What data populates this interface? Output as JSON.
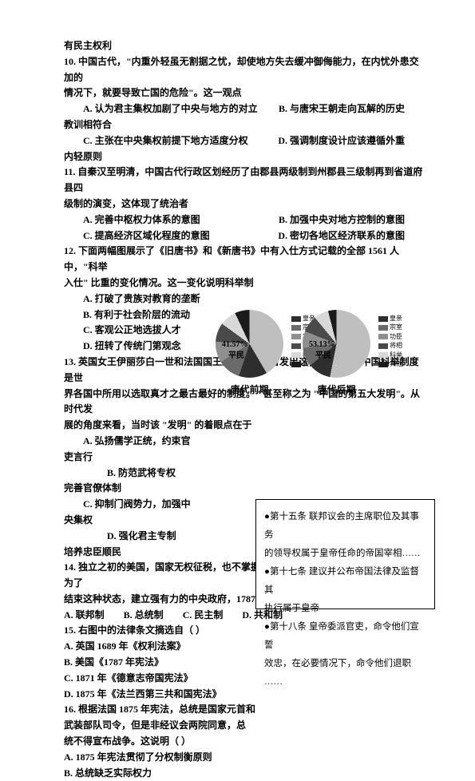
{
  "l1": "有民主权利",
  "q10_stem_a": "10. 中国古代，\"内重外轻虽无割据之忧，却使地方失去缓冲御侮能力，在内忧外患交加的",
  "q10_stem_b": "情况下，就要导致亡国的危险\"。这一观点",
  "q10_A": "A. 认为君主集权加剧了中央与地方的对立",
  "q10_B": "B. 与唐宋王朝走向瓦解的历史",
  "q10_Bx": "教训相符合",
  "q10_C": "C. 主张在中央集权前提下地方适度分权",
  "q10_D": "D. 强调制度设计应该遵循外重",
  "q10_Dx": "内轻原则",
  "q11_stem_a": "11. 自秦汉至明清，中国古代行政区划经历了由郡县两级制到州郡县三级制再到省道府县四",
  "q11_stem_b": "级制的演变，这体现了统治者",
  "q11_A": "A. 完善中枢权力体系的意图",
  "q11_B": "B. 加强中央对地方控制的意图",
  "q11_C": "C. 提高经济区域化程度的意图",
  "q11_D": "D. 密切各地区经济联系的意图",
  "q12_stem_a": "12. 下面两幅图展示了《旧唐书》和《新唐书》中有入仕方式记载的全部 1561 人中，\"科举",
  "q12_stem_b": "入仕\" 比重的变化情况。这一变化说明科举制",
  "q12_A": "A. 打破了贵族对教育的垄断",
  "q12_B": "B. 有利于社会阶层的流动",
  "q12_C": "C. 客观公正地选拔人才",
  "q12_D": "D. 扭转了传统门第观念",
  "q13_stem_a": "13. 英国女王伊丽莎白一世和法国国王路易十四都曾发出这样的感叹：\"中国科举制度是世",
  "q13_stem_b": "界各国中所用以选取真才之最古最好的制度。\" 甚至称之为 \"中国的第五大发明\"。从时代发",
  "q13_stem_c": "展的角度来看，当时该 \"发明\" 的着眼点在于",
  "q13_A_a": "A. 弘扬儒学正统，约束官",
  "q13_A_b": "吏言行",
  "q13_B_a": "B. 防范武将专权",
  "q13_B_b": "完善官僚体制",
  "q13_C_a": "C. 抑制门阀势力，加强中",
  "q13_C_b": "央集权",
  "q13_D_a": "D. 强化君主专制",
  "q13_D_b": "培养忠臣顺民",
  "q14_stem_a": "14. 独立之初的美国，国家无权征税，也不掌握军队，各州权力很大，社会动荡加剧。为了",
  "q14_stem_b": "结束这种状态，建立强有力的中央政府，1787 年宪法确立了（   ）",
  "q14_A": "A. 联邦制",
  "q14_B": "B. 总统制",
  "q14_C": "C. 民主制",
  "q14_D": "D. 共和制",
  "q15_stem": "15. 右图中的法律条文摘选自（   ）",
  "q15_A": "A. 英国 1689 年《权利法案》",
  "q15_B": "B. 美国《1787 年宪法》",
  "q15_C": "C. 1871 年《德意志帝国宪法》",
  "q15_D": "D. 1875 年《法兰西第三共和国宪法》",
  "q16_stem_a": "16. 根据法国 1875 年宪法，总统是国家元首和",
  "q16_stem_b": "武装部队司令，但是非经议会两院同意，总",
  "q16_stem_c": "统不得宣布战争。这说明（   ）",
  "q16_A": "A. 1875 年宪法贯彻了分权制衡原则",
  "q16_B": "B. 总统缺乏实际权力",
  "box_l1": "●第十五条    联邦议会的主席职位及其事务",
  "box_l2": "的领导权属于皇帝任命的帝国宰相……",
  "box_l3": "●第十七条    建议并公布帝国法律及监督其",
  "box_l4": "执行属于皇帝",
  "box_l5": "●第十八条    皇帝委派官吏，命令他们宣誓",
  "box_l6": "效忠，在必要情况下，命令他们退职",
  "box_l7": "……",
  "chart1": {
    "percent_text": "41.57%",
    "sub_label": "平民",
    "caption": "唐代前期",
    "pie_css": "conic-gradient(#bfbfbf 0 41.57%, #2e2e2e 41.57% 55%, #6a6a6a 55% 66%, #8f8f8f 66% 76%, #4a4a4a 76% 85%, #d8d8d8 85% 93%, #1a1a1a 93% 100%)"
  },
  "chart2": {
    "percent_text": "53.13%",
    "sub_label": "平民",
    "caption": "唐代后期",
    "pie_css": "conic-gradient(#bfbfbf 0 53.13%, #2e2e2e 53.13% 64%, #6a6a6a 64% 73%, #8f8f8f 73% 81%, #4a4a4a 81% 89%, #d8d8d8 89% 96%, #1a1a1a 96% 100%)"
  },
  "legend_items": [
    {
      "c": "#2e2e2e",
      "t": "皇亲"
    },
    {
      "c": "#6a6a6a",
      "t": "宗室"
    },
    {
      "c": "#8f8f8f",
      "t": "功臣"
    },
    {
      "c": "#4a4a4a",
      "t": "将相"
    },
    {
      "c": "#d8d8d8",
      "t": "科举"
    },
    {
      "c": "#1a1a1a",
      "t": "其他"
    }
  ]
}
